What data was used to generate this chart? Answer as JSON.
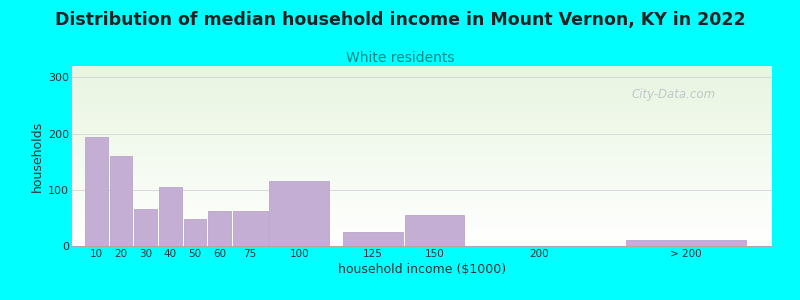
{
  "title": "Distribution of median household income in Mount Vernon, KY in 2022",
  "subtitle": "White residents",
  "xlabel": "household income ($1000)",
  "ylabel": "households",
  "background_color": "#00FFFF",
  "bar_color": "#c4aed4",
  "bar_edge_color": "#b09ec4",
  "title_fontsize": 12.5,
  "subtitle_fontsize": 10,
  "subtitle_color": "#008888",
  "title_color": "#222222",
  "bar_categories": [
    "10",
    "20",
    "30",
    "40",
    "50",
    "60",
    "75",
    "100",
    "125",
    "150",
    "200",
    "> 200"
  ],
  "bar_values": [
    193,
    160,
    65,
    105,
    48,
    62,
    62,
    115,
    25,
    55,
    0,
    10
  ],
  "bar_widths": [
    10,
    10,
    10,
    10,
    10,
    10,
    15,
    25,
    25,
    25,
    50,
    50
  ],
  "bar_lefts": [
    5,
    15,
    25,
    35,
    45,
    55,
    65,
    80,
    110,
    135,
    165,
    225
  ],
  "xlim": [
    0,
    285
  ],
  "yticks": [
    0,
    100,
    200,
    300
  ],
  "ylim": [
    0,
    320
  ],
  "watermark": "City-Data.com",
  "grid_color": "#cccccc",
  "plot_bg_colors": [
    "#e8f5e0",
    "#ffffff"
  ],
  "plot_bg_colors2": [
    "#e0f0f8",
    "#ffffff"
  ]
}
